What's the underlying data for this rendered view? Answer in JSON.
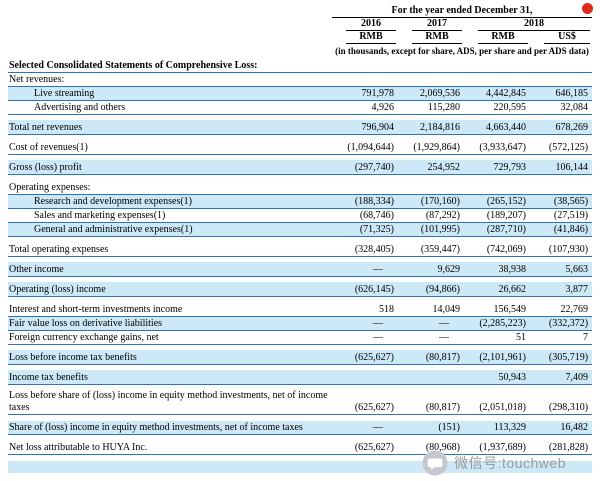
{
  "colors": {
    "stripe": "#cde8f6",
    "rule": "#2e74b5",
    "header_rule": "#000000",
    "watermark_text": "#9b9b9b",
    "red_dot": "#e02a1d",
    "icon_grey": "#c4c8cc"
  },
  "header": {
    "period_title": "For the year ended December 31,",
    "year_2016": "2016",
    "year_2017": "2017",
    "year_2018": "2018",
    "curr_1": "RMB",
    "curr_2": "RMB",
    "curr_3": "RMB",
    "curr_4": "US$",
    "note": "(in thousands, except for share, ADS, per share and per ADS data)"
  },
  "table": {
    "rows": [
      {
        "label": "Selected Consolidated Statements of Comprehensive Loss:",
        "indent": 0,
        "bold": true,
        "values": [
          "",
          "",
          "",
          ""
        ],
        "shaded": false,
        "gap_before": false
      },
      {
        "label": "Net revenues:",
        "indent": 0,
        "values": [
          "",
          "",
          "",
          ""
        ],
        "shaded": false,
        "gap_before": false
      },
      {
        "label": "Live streaming",
        "indent": 1,
        "values": [
          "791,978",
          "2,069,536",
          "4,442,845",
          "646,185"
        ],
        "shaded": true,
        "gap_before": false
      },
      {
        "label": "Advertising and others",
        "indent": 1,
        "values": [
          "4,926",
          "115,280",
          "220,595",
          "32,084"
        ],
        "shaded": false,
        "gap_before": false
      },
      {
        "label": "Total net revenues",
        "indent": 0,
        "values": [
          "796,904",
          "2,184,816",
          "4,663,440",
          "678,269"
        ],
        "shaded": true,
        "gap_before": true
      },
      {
        "label": "Cost of revenues(1)",
        "indent": 0,
        "values": [
          "(1,094,644)",
          "(1,929,864)",
          "(3,933,647)",
          "(572,125)"
        ],
        "shaded": false,
        "gap_before": true
      },
      {
        "label": "Gross (loss) profit",
        "indent": 0,
        "values": [
          "(297,740)",
          "254,952",
          "729,793",
          "106,144"
        ],
        "shaded": true,
        "gap_before": true
      },
      {
        "label": "Operating expenses:",
        "indent": 0,
        "values": [
          "",
          "",
          "",
          ""
        ],
        "shaded": false,
        "gap_before": true
      },
      {
        "label": "Research and development expenses(1)",
        "indent": 1,
        "values": [
          "(188,334)",
          "(170,160)",
          "(265,152)",
          "(38,565)"
        ],
        "shaded": true,
        "gap_before": false
      },
      {
        "label": "Sales and marketing expenses(1)",
        "indent": 1,
        "values": [
          "(68,746)",
          "(87,292)",
          "(189,207)",
          "(27,519)"
        ],
        "shaded": false,
        "gap_before": false
      },
      {
        "label": "General and administrative expenses(1)",
        "indent": 1,
        "values": [
          "(71,325)",
          "(101,995)",
          "(287,710)",
          "(41,846)"
        ],
        "shaded": true,
        "gap_before": false
      },
      {
        "label": "Total operating expenses",
        "indent": 0,
        "values": [
          "(328,405)",
          "(359,447)",
          "(742,069)",
          "(107,930)"
        ],
        "shaded": false,
        "gap_before": true
      },
      {
        "label": "Other income",
        "indent": 0,
        "values": [
          "—",
          "9,629",
          "38,938",
          "5,663"
        ],
        "shaded": true,
        "gap_before": true
      },
      {
        "label": "Operating (loss) income",
        "indent": 0,
        "values": [
          "(626,145)",
          "(94,866)",
          "26,662",
          "3,877"
        ],
        "shaded": true,
        "gap_before": true
      },
      {
        "label": "Interest and short-term investments income",
        "indent": 0,
        "values": [
          "518",
          "14,049",
          "156,549",
          "22,769"
        ],
        "shaded": false,
        "gap_before": true
      },
      {
        "label": "Fair value loss on derivative liabilities",
        "indent": 0,
        "values": [
          "—",
          "—",
          "(2,285,223)",
          "(332,372)"
        ],
        "shaded": true,
        "gap_before": false
      },
      {
        "label": "Foreign currency exchange gains, net",
        "indent": 0,
        "values": [
          "—",
          "—",
          "51",
          "7"
        ],
        "shaded": false,
        "gap_before": false
      },
      {
        "label": "Loss before income tax benefits",
        "indent": 0,
        "values": [
          "(625,627)",
          "(80,817)",
          "(2,101,961)",
          "(305,719)"
        ],
        "shaded": true,
        "gap_before": true
      },
      {
        "label": "Income tax benefits",
        "indent": 0,
        "values": [
          "",
          "",
          "50,943",
          "7,409"
        ],
        "shaded": true,
        "gap_before": true
      },
      {
        "label": "Loss before share of (loss) income in equity method investments, net of income taxes",
        "indent": 0,
        "values": [
          "(625,627)",
          "(80,817)",
          "(2,051,018)",
          "(298,310)"
        ],
        "shaded": false,
        "gap_before": true
      },
      {
        "label": "Share of (loss) income in equity method investments, net of income taxes",
        "indent": 0,
        "values": [
          "—",
          "(151)",
          "113,329",
          "16,482"
        ],
        "shaded": true,
        "gap_before": true
      },
      {
        "label": "Net loss attributable to HUYA Inc.",
        "indent": 0,
        "values": [
          "(625,627)",
          "(80,968)",
          "(1,937,689)",
          "(281,828)"
        ],
        "shaded": false,
        "gap_before": true
      },
      {
        "label": "",
        "indent": 0,
        "values": [
          "",
          "",
          "",
          ""
        ],
        "shaded": true,
        "gap_before": true,
        "partial": true
      }
    ]
  },
  "page": {
    "watermark_text": "微信号:touchweb"
  }
}
